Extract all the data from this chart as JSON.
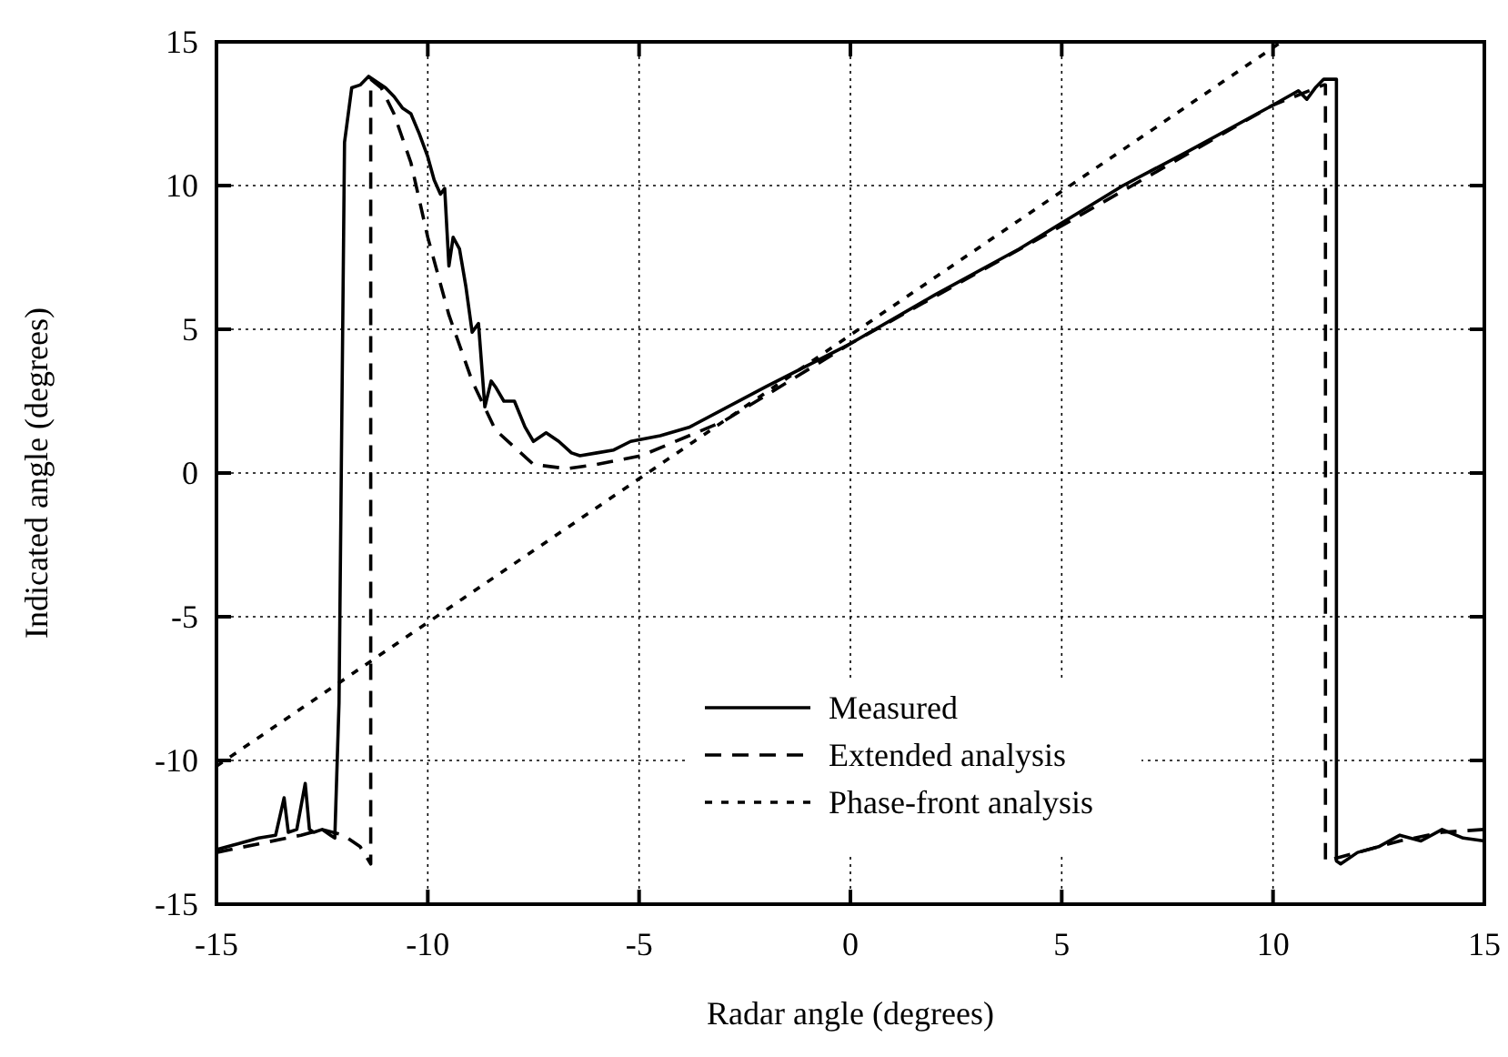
{
  "chart_data": {
    "type": "line",
    "xlabel": "Radar angle (degrees)",
    "ylabel": "Indicated angle (degrees)",
    "xlim": [
      -15,
      15
    ],
    "ylim": [
      -15,
      15
    ],
    "xticks": [
      -15,
      -10,
      -5,
      0,
      5,
      10,
      15
    ],
    "yticks": [
      -15,
      -10,
      -5,
      0,
      5,
      10,
      15
    ],
    "grid": true,
    "legend": "bottom",
    "series": [
      {
        "name": "Measured",
        "color": "#000000",
        "line_style": "solid",
        "x": [
          -15,
          -14.5,
          -14,
          -13.6,
          -13.4,
          -13.3,
          -13.1,
          -12.9,
          -12.8,
          -12.7,
          -12.5,
          -12.3,
          -12.2,
          -12.1,
          -11.97,
          -11.8,
          -11.6,
          -11.4,
          -11.2,
          -11,
          -10.8,
          -10.6,
          -10.4,
          -10.2,
          -10,
          -9.85,
          -9.7,
          -9.6,
          -9.5,
          -9.4,
          -9.25,
          -9.1,
          -8.95,
          -8.8,
          -8.65,
          -8.5,
          -8.4,
          -8.2,
          -7.95,
          -7.7,
          -7.5,
          -7.2,
          -6.9,
          -6.6,
          -6.4,
          -6,
          -5.6,
          -5.2,
          -4.5,
          -3.8,
          -2,
          0,
          2,
          4,
          6.45,
          8,
          10,
          10.6,
          10.8,
          11,
          11.2,
          11.5,
          11.5,
          11.6,
          12,
          12.5,
          13,
          13.5,
          14,
          14.5,
          15
        ],
        "values": [
          -13.1,
          -12.9,
          -12.7,
          -12.6,
          -11.3,
          -12.5,
          -12.4,
          -10.8,
          -12.4,
          -12.5,
          -12.4,
          -12.6,
          -12.7,
          -8,
          11.5,
          13.4,
          13.5,
          13.8,
          13.6,
          13.4,
          13.1,
          12.7,
          12.5,
          11.8,
          11.0,
          10.2,
          9.7,
          9.9,
          7.2,
          8.2,
          7.8,
          6.5,
          4.9,
          5.2,
          2.3,
          3.2,
          3.0,
          2.5,
          2.5,
          1.6,
          1.1,
          1.4,
          1.1,
          0.7,
          0.6,
          0.7,
          0.8,
          1.1,
          1.3,
          1.6,
          3,
          4.5,
          6.2,
          7.8,
          10,
          11.2,
          12.8,
          13.3,
          13,
          13.4,
          13.7,
          13.7,
          -13.5,
          -13.6,
          -13.2,
          -13.0,
          -12.6,
          -12.8,
          -12.4,
          -12.7,
          -12.8
        ]
      },
      {
        "name": "Extended analysis",
        "color": "#000000",
        "line_style": "dashed",
        "x": [
          -15,
          -14,
          -13,
          -12.5,
          -12,
          -11.6,
          -11.35,
          -11.35,
          -11.1,
          -10.8,
          -10.4,
          -10,
          -9.5,
          -8.95,
          -8.4,
          -7.5,
          -6.7,
          -6,
          -4.95,
          -3,
          0,
          5,
          10,
          11.2,
          11.24,
          11.24,
          12,
          13,
          14,
          15
        ],
        "values": [
          -13.2,
          -12.9,
          -12.6,
          -12.4,
          -12.6,
          -13.0,
          -13.6,
          13.7,
          13.4,
          12.5,
          10.8,
          8.2,
          5.5,
          3.2,
          1.5,
          0.3,
          0.15,
          0.3,
          0.6,
          1.8,
          4.5,
          8.6,
          12.8,
          13.5,
          13.5,
          -13.5,
          -13.2,
          -12.8,
          -12.5,
          -12.4
        ]
      },
      {
        "name": "Phase-front analysis",
        "color": "#000000",
        "line_style": "dotted",
        "x": [
          -15,
          10.2
        ],
        "values": [
          -10.2,
          15
        ]
      }
    ]
  }
}
